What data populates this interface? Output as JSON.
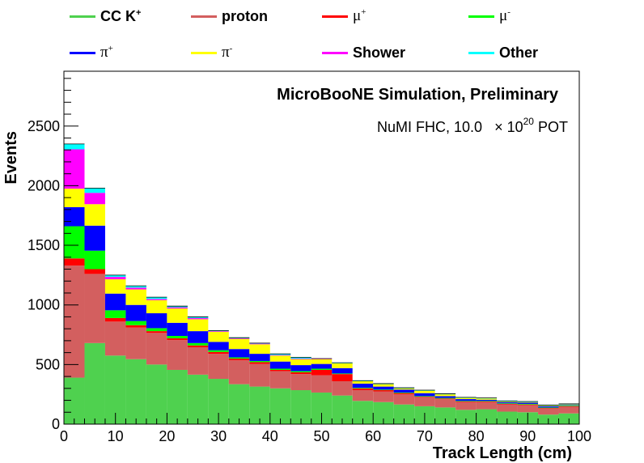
{
  "chart_data": {
    "type": "bar",
    "stacked": true,
    "title": "MicroBooNE Simulation, Preliminary",
    "subtitle": "NuMI FHC, 10.0",
    "subtitle_pot": "POT",
    "subtitle_exponent": "20",
    "xlabel": "Track Length (cm)",
    "ylabel": "Events",
    "xlim": [
      0,
      100
    ],
    "ylim": [
      0,
      2960
    ],
    "x_ticks": [
      0,
      10,
      20,
      30,
      40,
      50,
      60,
      70,
      80,
      90,
      100
    ],
    "y_ticks": [
      0,
      500,
      1000,
      1500,
      2000,
      2500
    ],
    "bin_edges": [
      0,
      4,
      8,
      12,
      16,
      20,
      24,
      28,
      32,
      36,
      40,
      44,
      48,
      52,
      56,
      60,
      64,
      68,
      72,
      76,
      80,
      84,
      88,
      92,
      96,
      100
    ],
    "legend_placement": "top",
    "series": [
      {
        "name": "CC K",
        "sup": "+",
        "color": "#4fd14f",
        "values": [
          390,
          680,
          575,
          545,
          500,
          455,
          415,
          380,
          335,
          315,
          300,
          285,
          265,
          240,
          195,
          185,
          165,
          150,
          140,
          120,
          125,
          105,
          100,
          80,
          90
        ]
      },
      {
        "name": "proton",
        "sup": "",
        "color": "#d35f5f",
        "values": [
          940,
          580,
          285,
          265,
          265,
          250,
          230,
          210,
          200,
          190,
          145,
          135,
          145,
          120,
          90,
          90,
          85,
          75,
          70,
          65,
          60,
          60,
          60,
          50,
          55
        ]
      },
      {
        "name": "μ",
        "sup": "+",
        "color": "#ff0000",
        "values": [
          60,
          40,
          30,
          20,
          15,
          15,
          15,
          15,
          15,
          15,
          10,
          15,
          45,
          60,
          15,
          10,
          10,
          5,
          5,
          5,
          5,
          5,
          5,
          5,
          5
        ]
      },
      {
        "name": "μ",
        "sup": "-",
        "color": "#00ff00",
        "values": [
          270,
          155,
          65,
          35,
          25,
          20,
          20,
          15,
          10,
          10,
          10,
          10,
          10,
          5,
          5,
          5,
          5,
          5,
          5,
          5,
          5,
          5,
          5,
          5,
          5
        ]
      },
      {
        "name": "π",
        "sup": "+",
        "color": "#0000ff",
        "values": [
          160,
          210,
          140,
          135,
          125,
          110,
          100,
          70,
          70,
          60,
          60,
          50,
          40,
          45,
          35,
          25,
          25,
          25,
          15,
          15,
          10,
          10,
          10,
          10,
          5
        ]
      },
      {
        "name": "π",
        "sup": "-",
        "color": "#ffff00",
        "values": [
          155,
          180,
          120,
          130,
          110,
          120,
          100,
          85,
          85,
          80,
          50,
          50,
          40,
          40,
          20,
          20,
          10,
          20,
          15,
          10,
          10,
          5,
          5,
          5,
          5
        ]
      },
      {
        "name": "Shower",
        "sup": "",
        "color": "#ff00ff",
        "values": [
          330,
          95,
          20,
          15,
          10,
          10,
          10,
          5,
          5,
          5,
          5,
          5,
          5,
          0,
          0,
          0,
          0,
          0,
          0,
          0,
          0,
          0,
          0,
          0,
          0
        ]
      },
      {
        "name": "Other",
        "sup": "",
        "color": "#00ffff",
        "values": [
          45,
          40,
          15,
          15,
          15,
          10,
          10,
          5,
          5,
          5,
          10,
          10,
          0,
          5,
          5,
          5,
          5,
          5,
          5,
          5,
          5,
          5,
          5,
          5,
          5
        ]
      }
    ]
  }
}
